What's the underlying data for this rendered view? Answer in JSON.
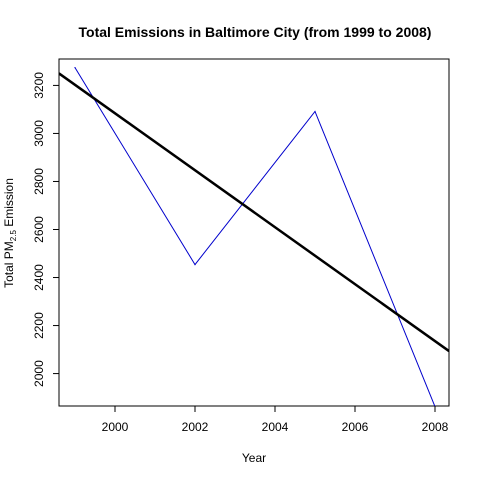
{
  "chart_data": {
    "type": "line",
    "title": "Total Emissions in Baltimore City (from 1999 to 2008)",
    "xlabel": "Year",
    "ylabel": {
      "prefix": "Total PM",
      "subscript": "2.5",
      "suffix": " Emission"
    },
    "xlim": [
      1998.6,
      2008.35
    ],
    "ylim": [
      1865,
      3310
    ],
    "xticks": [
      2000,
      2002,
      2004,
      2006,
      2008
    ],
    "yticks": [
      2000,
      2200,
      2400,
      2600,
      2800,
      3000,
      3200
    ],
    "grid": false,
    "series": [
      {
        "kind": "data",
        "color": "#0000cc",
        "x": [
          1999,
          2002,
          2005,
          2008
        ],
        "y": [
          3274.2,
          2453.9,
          3091.4,
          1862.3
        ]
      },
      {
        "kind": "regression",
        "color": "#000000",
        "intercept_at_x0": 3250,
        "x0": 1998.6,
        "slope": -118.6
      }
    ]
  }
}
